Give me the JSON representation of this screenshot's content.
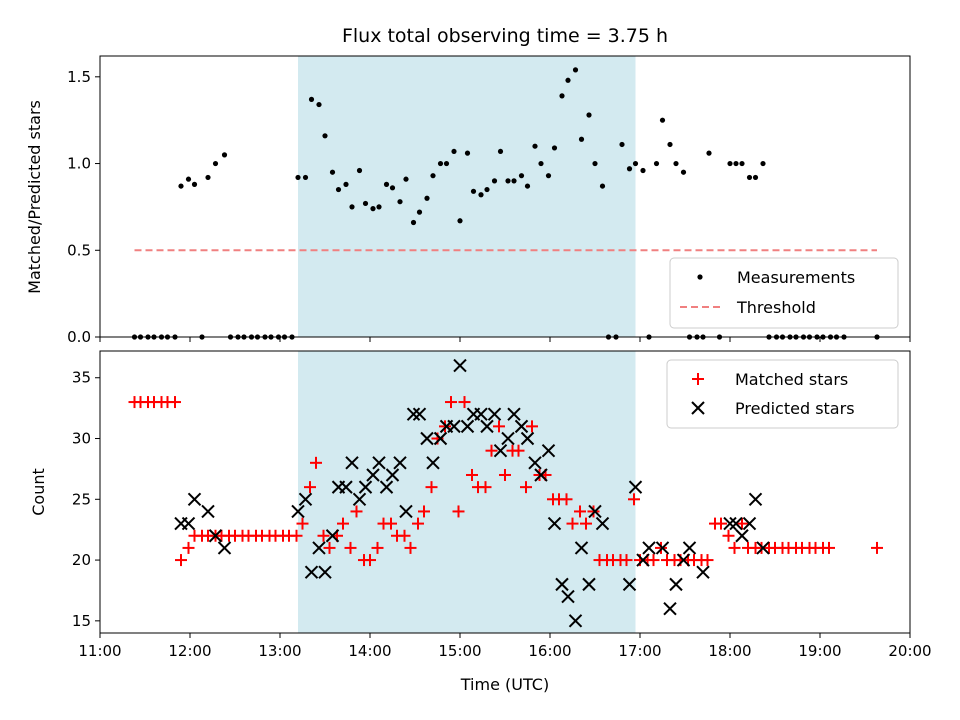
{
  "chart_data": {
    "type": "scatter",
    "title": "Flux total observing time = 3.75 h",
    "xlabel": "Time (UTC)",
    "x_ticks": [
      "11:00",
      "12:00",
      "13:00",
      "14:00",
      "15:00",
      "16:00",
      "17:00",
      "18:00",
      "19:00",
      "20:00"
    ],
    "xlim": [
      "11:00",
      "20:00"
    ],
    "shaded_window": [
      "13:12",
      "16:57"
    ],
    "colors": {
      "measurements": "#000000",
      "threshold": "#f08080",
      "matched": "#ff0000",
      "predicted": "#000000",
      "shade": "#d3eaf0"
    },
    "top_panel": {
      "ylabel": "Matched/Predicted stars",
      "ylim": [
        0,
        1.62
      ],
      "y_ticks": [
        "0.0",
        "0.5",
        "1.0",
        "1.5"
      ],
      "legend": {
        "position": "lower-right",
        "entries": [
          "Measurements",
          "Threshold"
        ]
      },
      "threshold": {
        "value": 0.5,
        "x_start": "11:23",
        "x_end": "19:38"
      },
      "measurements": [
        [
          "11:23",
          0
        ],
        [
          "11:27",
          0
        ],
        [
          "11:32",
          0
        ],
        [
          "11:36",
          0
        ],
        [
          "11:41",
          0
        ],
        [
          "11:45",
          0
        ],
        [
          "11:50",
          0
        ],
        [
          "11:54",
          0.87
        ],
        [
          "11:59",
          0.91
        ],
        [
          "12:03",
          0.88
        ],
        [
          "12:08",
          0
        ],
        [
          "12:12",
          0.92
        ],
        [
          "12:17",
          1.0
        ],
        [
          "12:23",
          1.05
        ],
        [
          "12:27",
          0
        ],
        [
          "12:32",
          0
        ],
        [
          "12:36",
          0
        ],
        [
          "12:41",
          0
        ],
        [
          "12:45",
          0
        ],
        [
          "12:50",
          0
        ],
        [
          "12:54",
          0
        ],
        [
          "12:59",
          0
        ],
        [
          "13:03",
          0
        ],
        [
          "13:08",
          0
        ],
        [
          "13:12",
          0.92
        ],
        [
          "13:17",
          0.92
        ],
        [
          "13:21",
          1.37
        ],
        [
          "13:26",
          1.34
        ],
        [
          "13:30",
          1.16
        ],
        [
          "13:35",
          0.95
        ],
        [
          "13:39",
          0.85
        ],
        [
          "13:44",
          0.88
        ],
        [
          "13:48",
          0.75
        ],
        [
          "13:53",
          0.96
        ],
        [
          "13:57",
          0.77
        ],
        [
          "14:02",
          0.74
        ],
        [
          "14:06",
          0.75
        ],
        [
          "14:11",
          0.88
        ],
        [
          "14:15",
          0.86
        ],
        [
          "14:20",
          0.78
        ],
        [
          "14:24",
          0.91
        ],
        [
          "14:29",
          0.66
        ],
        [
          "14:33",
          0.72
        ],
        [
          "14:38",
          0.8
        ],
        [
          "14:42",
          0.93
        ],
        [
          "14:47",
          1.0
        ],
        [
          "14:51",
          1.0
        ],
        [
          "14:56",
          1.07
        ],
        [
          "15:00",
          0.67
        ],
        [
          "15:05",
          1.06
        ],
        [
          "15:09",
          0.84
        ],
        [
          "15:14",
          0.82
        ],
        [
          "15:18",
          0.85
        ],
        [
          "15:23",
          0.9
        ],
        [
          "15:27",
          1.07
        ],
        [
          "15:32",
          0.9
        ],
        [
          "15:36",
          0.9
        ],
        [
          "15:41",
          0.93
        ],
        [
          "15:45",
          0.87
        ],
        [
          "15:50",
          1.1
        ],
        [
          "15:54",
          1.0
        ],
        [
          "15:59",
          0.93
        ],
        [
          "16:03",
          1.09
        ],
        [
          "16:08",
          1.39
        ],
        [
          "16:12",
          1.48
        ],
        [
          "16:17",
          1.54
        ],
        [
          "16:21",
          1.14
        ],
        [
          "16:26",
          1.28
        ],
        [
          "16:30",
          1.0
        ],
        [
          "16:35",
          0.87
        ],
        [
          "16:39",
          0
        ],
        [
          "16:44",
          0
        ],
        [
          "16:48",
          1.11
        ],
        [
          "16:53",
          0.97
        ],
        [
          "16:57",
          1.0
        ],
        [
          "17:02",
          0.96
        ],
        [
          "17:06",
          0
        ],
        [
          "17:11",
          1.0
        ],
        [
          "17:15",
          1.25
        ],
        [
          "17:20",
          1.11
        ],
        [
          "17:24",
          1.0
        ],
        [
          "17:29",
          0.95
        ],
        [
          "17:33",
          0
        ],
        [
          "17:38",
          0
        ],
        [
          "17:42",
          0
        ],
        [
          "17:46",
          1.06
        ],
        [
          "17:53",
          0
        ],
        [
          "18:00",
          1.0
        ],
        [
          "18:04",
          1.0
        ],
        [
          "18:08",
          1.0
        ],
        [
          "18:13",
          0.92
        ],
        [
          "18:17",
          0.92
        ],
        [
          "18:22",
          1.0
        ],
        [
          "18:26",
          0
        ],
        [
          "18:31",
          0
        ],
        [
          "18:35",
          0
        ],
        [
          "18:40",
          0
        ],
        [
          "18:44",
          0
        ],
        [
          "18:49",
          0
        ],
        [
          "18:53",
          0
        ],
        [
          "18:58",
          0
        ],
        [
          "19:02",
          0
        ],
        [
          "19:07",
          0
        ],
        [
          "19:11",
          0
        ],
        [
          "19:16",
          0
        ],
        [
          "19:38",
          0
        ]
      ]
    },
    "bottom_panel": {
      "ylabel": "Count",
      "ylim": [
        14,
        37.2
      ],
      "y_ticks": [
        "15",
        "20",
        "25",
        "30",
        "35"
      ],
      "legend": {
        "position": "upper-right",
        "entries": [
          "Matched stars",
          "Predicted stars"
        ]
      },
      "matched": [
        [
          "11:23",
          33
        ],
        [
          "11:27",
          33
        ],
        [
          "11:32",
          33
        ],
        [
          "11:36",
          33
        ],
        [
          "11:41",
          33
        ],
        [
          "11:45",
          33
        ],
        [
          "11:50",
          33
        ],
        [
          "11:54",
          20
        ],
        [
          "11:59",
          21
        ],
        [
          "12:03",
          22
        ],
        [
          "12:08",
          22
        ],
        [
          "12:12",
          22
        ],
        [
          "12:17",
          22
        ],
        [
          "12:21",
          22
        ],
        [
          "12:26",
          22
        ],
        [
          "12:30",
          22
        ],
        [
          "12:35",
          22
        ],
        [
          "12:39",
          22
        ],
        [
          "12:44",
          22
        ],
        [
          "12:48",
          22
        ],
        [
          "12:53",
          22
        ],
        [
          "12:57",
          22
        ],
        [
          "13:02",
          22
        ],
        [
          "13:06",
          22
        ],
        [
          "13:11",
          22
        ],
        [
          "13:15",
          23
        ],
        [
          "13:20",
          26
        ],
        [
          "13:24",
          28
        ],
        [
          "13:29",
          22
        ],
        [
          "13:33",
          21
        ],
        [
          "13:38",
          22
        ],
        [
          "13:42",
          23
        ],
        [
          "13:47",
          21
        ],
        [
          "13:51",
          24
        ],
        [
          "13:56",
          20
        ],
        [
          "14:00",
          20
        ],
        [
          "14:05",
          21
        ],
        [
          "14:09",
          23
        ],
        [
          "14:14",
          23
        ],
        [
          "14:18",
          22
        ],
        [
          "14:23",
          22
        ],
        [
          "14:27",
          21
        ],
        [
          "14:32",
          23
        ],
        [
          "14:36",
          24
        ],
        [
          "14:41",
          26
        ],
        [
          "14:45",
          30
        ],
        [
          "14:50",
          31
        ],
        [
          "14:54",
          33
        ],
        [
          "14:59",
          24
        ],
        [
          "15:03",
          33
        ],
        [
          "15:08",
          27
        ],
        [
          "15:12",
          26
        ],
        [
          "15:17",
          26
        ],
        [
          "15:21",
          29
        ],
        [
          "15:26",
          31
        ],
        [
          "15:30",
          27
        ],
        [
          "15:35",
          29
        ],
        [
          "15:39",
          29
        ],
        [
          "15:44",
          26
        ],
        [
          "15:48",
          31
        ],
        [
          "15:53",
          27
        ],
        [
          "15:57",
          27
        ],
        [
          "16:02",
          25
        ],
        [
          "16:06",
          25
        ],
        [
          "16:11",
          25
        ],
        [
          "16:15",
          23
        ],
        [
          "16:20",
          24
        ],
        [
          "16:24",
          23
        ],
        [
          "16:29",
          24
        ],
        [
          "16:33",
          20
        ],
        [
          "16:38",
          20
        ],
        [
          "16:42",
          20
        ],
        [
          "16:47",
          20
        ],
        [
          "16:51",
          20
        ],
        [
          "16:56",
          25
        ],
        [
          "17:00",
          20
        ],
        [
          "17:05",
          20
        ],
        [
          "17:09",
          20
        ],
        [
          "17:14",
          21
        ],
        [
          "17:18",
          20
        ],
        [
          "17:23",
          20
        ],
        [
          "17:27",
          20
        ],
        [
          "17:32",
          20
        ],
        [
          "17:36",
          20
        ],
        [
          "17:41",
          20
        ],
        [
          "17:45",
          20
        ],
        [
          "17:50",
          23
        ],
        [
          "17:54",
          23
        ],
        [
          "17:59",
          22
        ],
        [
          "18:03",
          21
        ],
        [
          "18:08",
          23
        ],
        [
          "18:12",
          21
        ],
        [
          "18:17",
          21
        ],
        [
          "18:21",
          21
        ],
        [
          "18:26",
          21
        ],
        [
          "18:30",
          21
        ],
        [
          "18:35",
          21
        ],
        [
          "18:39",
          21
        ],
        [
          "18:44",
          21
        ],
        [
          "18:48",
          21
        ],
        [
          "18:53",
          21
        ],
        [
          "18:57",
          21
        ],
        [
          "19:02",
          21
        ],
        [
          "19:06",
          21
        ],
        [
          "19:38",
          21
        ]
      ],
      "predicted": [
        [
          "11:54",
          23
        ],
        [
          "11:59",
          23
        ],
        [
          "12:03",
          25
        ],
        [
          "12:12",
          24
        ],
        [
          "12:17",
          22
        ],
        [
          "12:23",
          21
        ],
        [
          "13:12",
          24
        ],
        [
          "13:17",
          25
        ],
        [
          "13:21",
          19
        ],
        [
          "13:26",
          21
        ],
        [
          "13:30",
          19
        ],
        [
          "13:35",
          22
        ],
        [
          "13:39",
          26
        ],
        [
          "13:44",
          26
        ],
        [
          "13:48",
          28
        ],
        [
          "13:53",
          25
        ],
        [
          "13:57",
          26
        ],
        [
          "14:02",
          27
        ],
        [
          "14:06",
          28
        ],
        [
          "14:11",
          26
        ],
        [
          "14:15",
          27
        ],
        [
          "14:20",
          28
        ],
        [
          "14:24",
          24
        ],
        [
          "14:29",
          32
        ],
        [
          "14:33",
          32
        ],
        [
          "14:38",
          30
        ],
        [
          "14:42",
          28
        ],
        [
          "14:47",
          30
        ],
        [
          "14:51",
          31
        ],
        [
          "14:56",
          31
        ],
        [
          "15:00",
          36
        ],
        [
          "15:05",
          31
        ],
        [
          "15:09",
          32
        ],
        [
          "15:14",
          32
        ],
        [
          "15:18",
          31
        ],
        [
          "15:23",
          32
        ],
        [
          "15:27",
          29
        ],
        [
          "15:32",
          30
        ],
        [
          "15:36",
          32
        ],
        [
          "15:41",
          31
        ],
        [
          "15:45",
          30
        ],
        [
          "15:50",
          28
        ],
        [
          "15:54",
          27
        ],
        [
          "15:59",
          29
        ],
        [
          "16:03",
          23
        ],
        [
          "16:08",
          18
        ],
        [
          "16:12",
          17
        ],
        [
          "16:17",
          15
        ],
        [
          "16:21",
          21
        ],
        [
          "16:26",
          18
        ],
        [
          "16:30",
          24
        ],
        [
          "16:35",
          23
        ],
        [
          "16:53",
          18
        ],
        [
          "16:57",
          26
        ],
        [
          "17:02",
          20
        ],
        [
          "17:06",
          21
        ],
        [
          "17:15",
          21
        ],
        [
          "17:20",
          16
        ],
        [
          "17:24",
          18
        ],
        [
          "17:29",
          20
        ],
        [
          "17:33",
          21
        ],
        [
          "17:42",
          19
        ],
        [
          "18:00",
          23
        ],
        [
          "18:04",
          23
        ],
        [
          "18:08",
          22
        ],
        [
          "18:13",
          23
        ],
        [
          "18:17",
          25
        ],
        [
          "18:22",
          21
        ]
      ]
    }
  }
}
